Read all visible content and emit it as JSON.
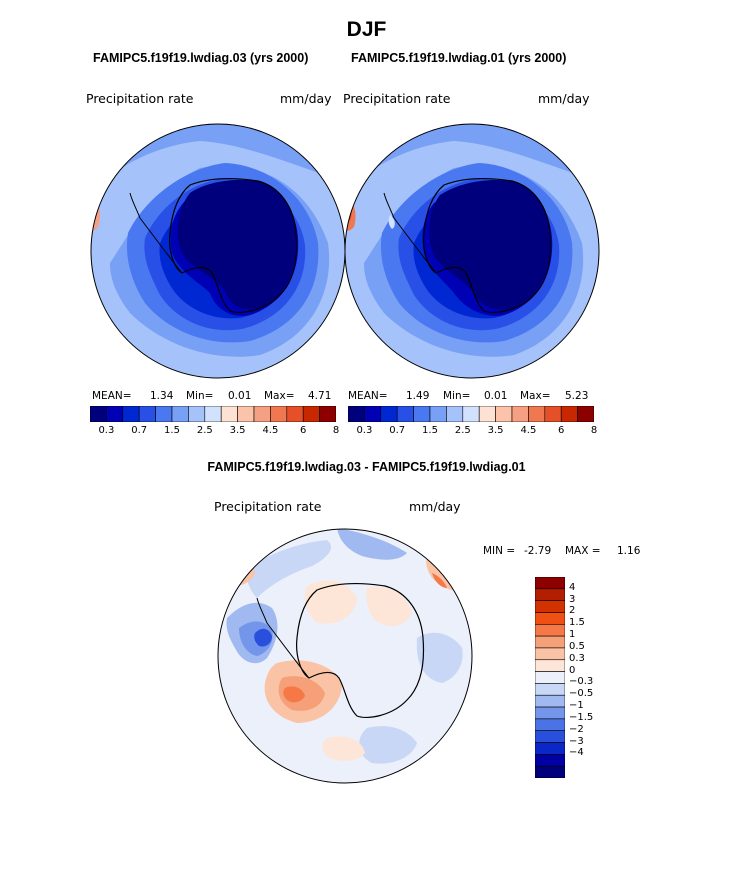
{
  "page_title": "DJF",
  "panels": [
    {
      "case_title": "FAMIPC5.f19f19.lwdiag.03 (yrs 2000)",
      "variable": "Precipitation rate",
      "units": "mm/day",
      "stats": {
        "mean_label": "MEAN=",
        "mean": "1.34",
        "min_label": "Min=",
        "min": "0.01",
        "max_label": "Max=",
        "max": "4.71"
      }
    },
    {
      "case_title": "FAMIPC5.f19f19.lwdiag.01 (yrs 2000)",
      "variable": "Precipitation rate",
      "units": "mm/day",
      "stats": {
        "mean_label": "MEAN=",
        "mean": "1.49",
        "min_label": "Min=",
        "min": "0.01",
        "max_label": "Max=",
        "max": "5.23"
      }
    }
  ],
  "abs_colorbar": {
    "colors": [
      "#00007d",
      "#0000b4",
      "#0028d2",
      "#2850e6",
      "#4a78f0",
      "#78a0f5",
      "#a5c3fa",
      "#d2e1fd",
      "#fde1d2",
      "#fac3aa",
      "#f5a082",
      "#f07850",
      "#e65028",
      "#c82800",
      "#8c0000"
    ],
    "tick_labels": [
      "0.3",
      "0.7",
      "1.5",
      "2.5",
      "3.5",
      "4.5",
      "6",
      "8"
    ]
  },
  "difference": {
    "title": "FAMIPC5.f19f19.lwdiag.03 - FAMIPC5.f19f19.lwdiag.01",
    "variable": "Precipitation rate",
    "units": "mm/day",
    "min_label": "MIN =",
    "min": "-2.79",
    "max_label": "MAX =",
    "max": "1.16",
    "colorbar": {
      "colors_top_to_bottom": [
        "#8c0000",
        "#b41e00",
        "#d23200",
        "#f05014",
        "#f57846",
        "#f5a078",
        "#fac3a5",
        "#fde6d7",
        "#ebf0fa",
        "#c8d7f5",
        "#a0b9f0",
        "#7396eb",
        "#4b73e6",
        "#2850dc",
        "#0a28c8",
        "#0000a5",
        "#00007d"
      ],
      "tick_labels": [
        "4",
        "3",
        "2",
        "1.5",
        "1",
        "0.5",
        "0.3",
        "0",
        "−0.3",
        "−0.5",
        "−1",
        "−1.5",
        "−2",
        "−3",
        "−4"
      ]
    }
  },
  "chart_data": [
    {
      "type": "heatmap",
      "title": "FAMIPC5.f19f19.lwdiag.03 (yrs 2000)",
      "projection": "south polar stereographic",
      "variable": "Precipitation rate",
      "units": "mm/day",
      "mean": 1.34,
      "min": 0.01,
      "max": 4.71,
      "contour_levels": [
        0.2,
        0.3,
        0.5,
        0.7,
        1,
        1.5,
        2,
        2.5,
        3,
        3.5,
        4,
        4.5,
        5,
        6,
        7,
        8
      ]
    },
    {
      "type": "heatmap",
      "title": "FAMIPC5.f19f19.lwdiag.01 (yrs 2000)",
      "projection": "south polar stereographic",
      "variable": "Precipitation rate",
      "units": "mm/day",
      "mean": 1.49,
      "min": 0.01,
      "max": 5.23,
      "contour_levels": [
        0.2,
        0.3,
        0.5,
        0.7,
        1,
        1.5,
        2,
        2.5,
        3,
        3.5,
        4,
        4.5,
        5,
        6,
        7,
        8
      ]
    },
    {
      "type": "heatmap",
      "title": "FAMIPC5.f19f19.lwdiag.03 - FAMIPC5.f19f19.lwdiag.01",
      "projection": "south polar stereographic",
      "variable": "Precipitation rate",
      "units": "mm/day",
      "min": -2.79,
      "max": 1.16,
      "contour_levels": [
        -4,
        -3,
        -2,
        -1.5,
        -1,
        -0.5,
        -0.3,
        0,
        0.3,
        0.5,
        1,
        1.5,
        2,
        3,
        4
      ]
    }
  ]
}
